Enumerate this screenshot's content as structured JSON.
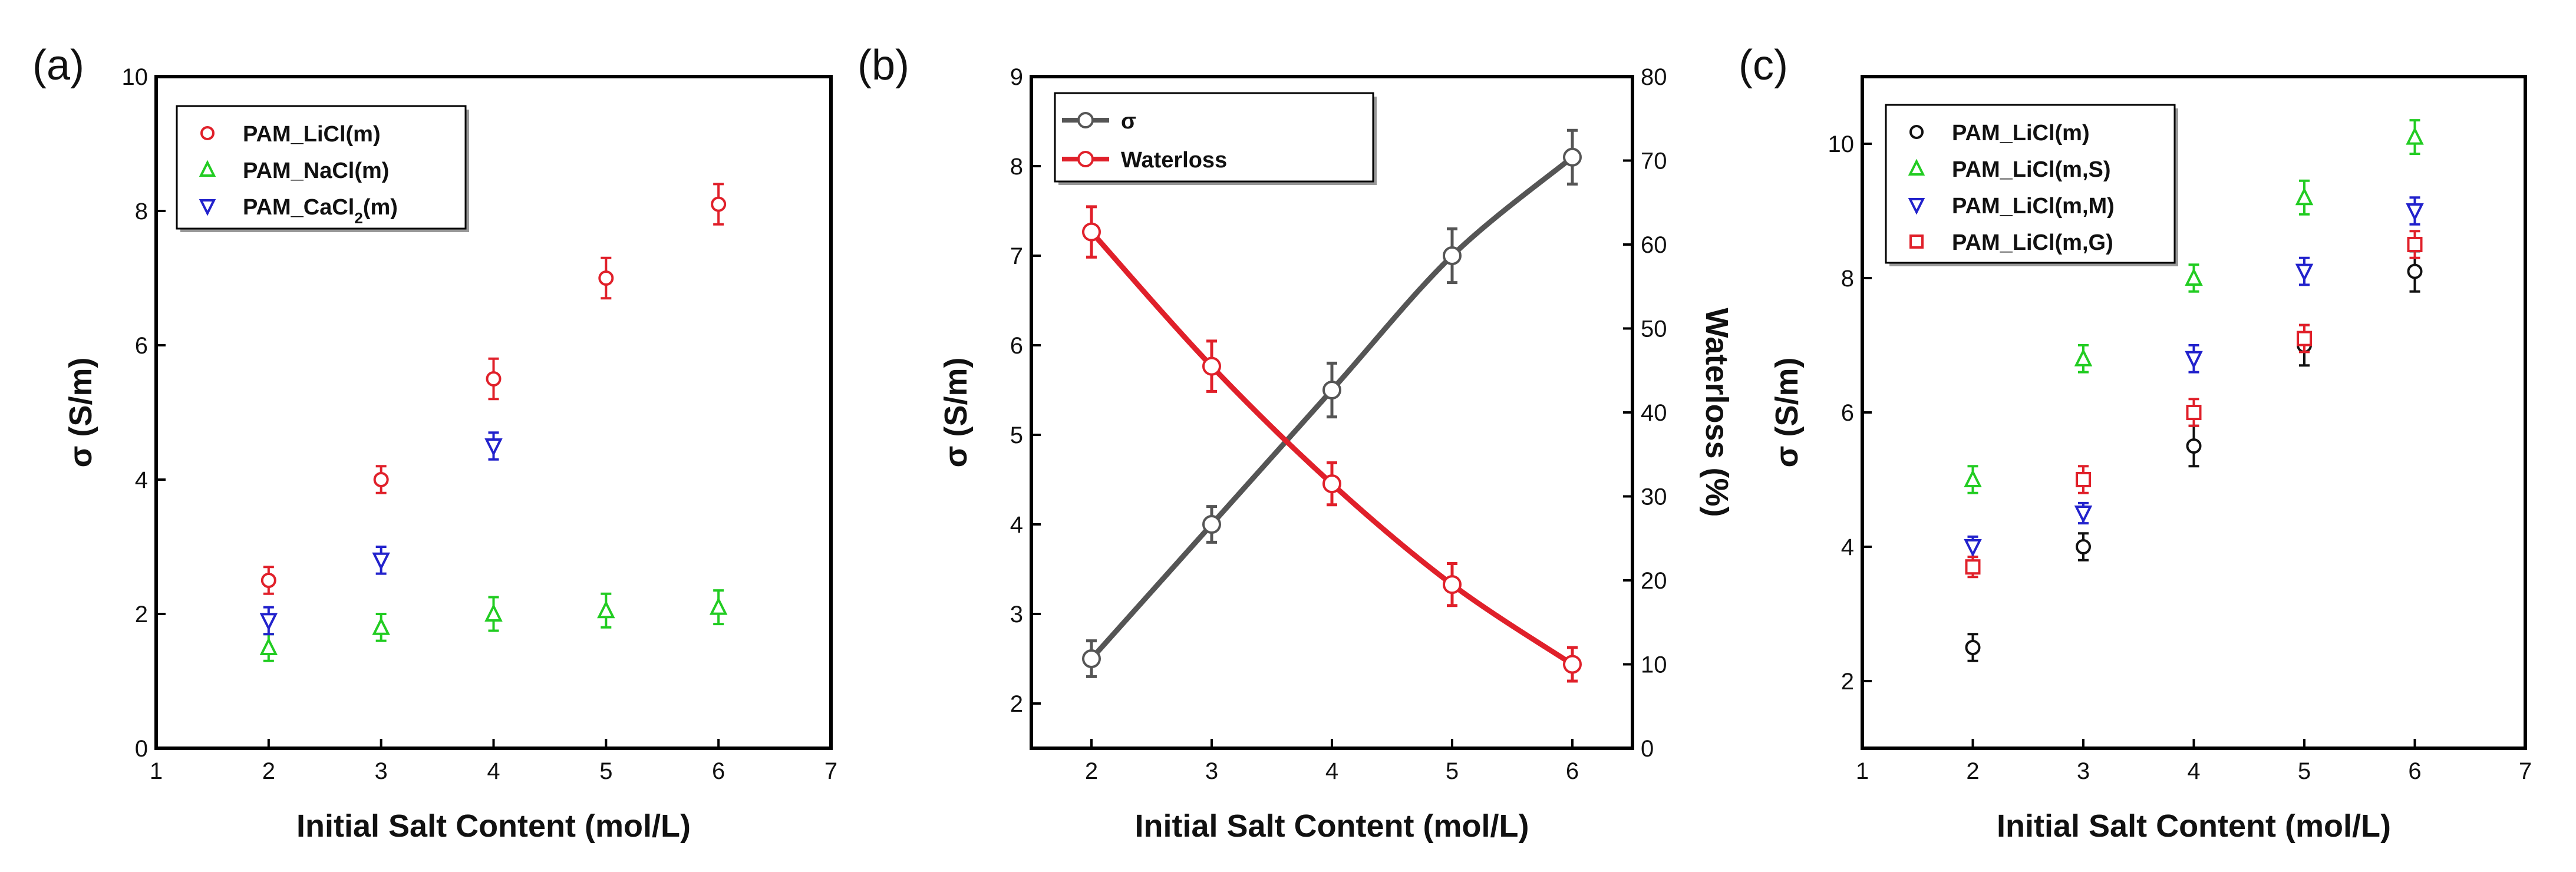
{
  "chart_data": [
    {
      "type": "scatter",
      "panel_label": "(a)",
      "xlabel": "Initial Salt Content (mol/L)",
      "ylabel": "σ (S/m)",
      "xlim": [
        1,
        7
      ],
      "ylim": [
        0,
        10
      ],
      "xticks": [
        1,
        2,
        3,
        4,
        5,
        6,
        7
      ],
      "yticks": [
        0,
        2,
        4,
        6,
        8,
        10
      ],
      "legend_position": "top-left",
      "series": [
        {
          "name": "PAM_LiCl(m)",
          "label_main": "PAM_LiCl(m)",
          "marker": "circle",
          "color": "#e0202a",
          "x": [
            2,
            3,
            4,
            5,
            6
          ],
          "y": [
            2.5,
            4.0,
            5.5,
            7.0,
            8.1
          ],
          "err": [
            0.2,
            0.2,
            0.3,
            0.3,
            0.3
          ]
        },
        {
          "name": "PAM_NaCl(m)",
          "label_main": "PAM_NaCl(m)",
          "marker": "triangle-up",
          "color": "#22cc22",
          "x": [
            2,
            3,
            4,
            5,
            6
          ],
          "y": [
            1.5,
            1.8,
            2.0,
            2.05,
            2.1
          ],
          "err": [
            0.2,
            0.2,
            0.25,
            0.25,
            0.25
          ]
        },
        {
          "name": "PAM_CaCl2(m)",
          "label_main": "PAM_CaCl",
          "label_sub": "2",
          "label_tail": "(m)",
          "marker": "triangle-down",
          "color": "#2222cc",
          "x": [
            2,
            3,
            4
          ],
          "y": [
            1.9,
            2.8,
            4.5
          ],
          "err": [
            0.2,
            0.2,
            0.2
          ]
        }
      ]
    },
    {
      "type": "line",
      "panel_label": "(b)",
      "xlabel": "Initial Salt Content (mol/L)",
      "ylabel": "σ (S/m)",
      "y2label": "Waterloss (%)",
      "xlim": [
        1.5,
        6.5
      ],
      "ylim": [
        1.5,
        9
      ],
      "y2lim": [
        0,
        80
      ],
      "xticks": [
        2,
        3,
        4,
        5,
        6
      ],
      "yticks": [
        2,
        3,
        4,
        5,
        6,
        7,
        8,
        9
      ],
      "y2ticks": [
        0,
        10,
        20,
        30,
        40,
        50,
        60,
        70,
        80
      ],
      "legend_position": "top-left",
      "series": [
        {
          "name": "σ",
          "label_main": "σ",
          "axis": "left",
          "marker": "circle",
          "color": "#555555",
          "x": [
            2,
            3,
            4,
            5,
            6
          ],
          "y": [
            2.5,
            4.0,
            5.5,
            7.0,
            8.1
          ],
          "err": [
            0.2,
            0.2,
            0.3,
            0.3,
            0.3
          ]
        },
        {
          "name": "Waterloss",
          "label_main": "Waterloss",
          "axis": "right",
          "marker": "circle",
          "color": "#e0202a",
          "x": [
            2,
            3,
            4,
            5,
            6
          ],
          "y": [
            61.5,
            45.5,
            31.5,
            19.5,
            10.0
          ],
          "err": [
            3,
            3,
            2.5,
            2.5,
            2
          ]
        }
      ]
    },
    {
      "type": "scatter",
      "panel_label": "(c)",
      "xlabel": "Initial Salt Content (mol/L)",
      "ylabel": "σ (S/m)",
      "xlim": [
        1,
        7
      ],
      "ylim": [
        1,
        11
      ],
      "xticks": [
        1,
        2,
        3,
        4,
        5,
        6,
        7
      ],
      "yticks": [
        2,
        4,
        6,
        8,
        10
      ],
      "legend_position": "top-left",
      "series": [
        {
          "name": "PAM_LiCl(m)",
          "label_main": "PAM_LiCl(m)",
          "marker": "circle",
          "color": "#111111",
          "x": [
            2,
            3,
            4,
            5,
            6
          ],
          "y": [
            2.5,
            4.0,
            5.5,
            7.0,
            8.1
          ],
          "err": [
            0.2,
            0.2,
            0.3,
            0.3,
            0.3
          ]
        },
        {
          "name": "PAM_LiCl(m,S)",
          "label_main": "PAM_LiCl(m,S)",
          "marker": "triangle-up",
          "color": "#22cc22",
          "x": [
            2,
            3,
            4,
            5,
            6
          ],
          "y": [
            5.0,
            6.8,
            8.0,
            9.2,
            10.1
          ],
          "err": [
            0.2,
            0.2,
            0.2,
            0.25,
            0.25
          ]
        },
        {
          "name": "PAM_LiCl(m,M)",
          "label_main": "PAM_LiCl(m,M)",
          "marker": "triangle-down",
          "color": "#2222cc",
          "x": [
            2,
            3,
            4,
            5,
            6
          ],
          "y": [
            4.0,
            4.5,
            6.8,
            8.1,
            9.0
          ],
          "err": [
            0.15,
            0.15,
            0.2,
            0.2,
            0.2
          ]
        },
        {
          "name": "PAM_LiCl(m,G)",
          "label_main": "PAM_LiCl(m,G)",
          "marker": "square",
          "color": "#e0202a",
          "x": [
            2,
            3,
            4,
            5,
            6
          ],
          "y": [
            3.7,
            5.0,
            6.0,
            7.1,
            8.5
          ],
          "err": [
            0.15,
            0.2,
            0.2,
            0.2,
            0.2
          ]
        }
      ]
    }
  ]
}
